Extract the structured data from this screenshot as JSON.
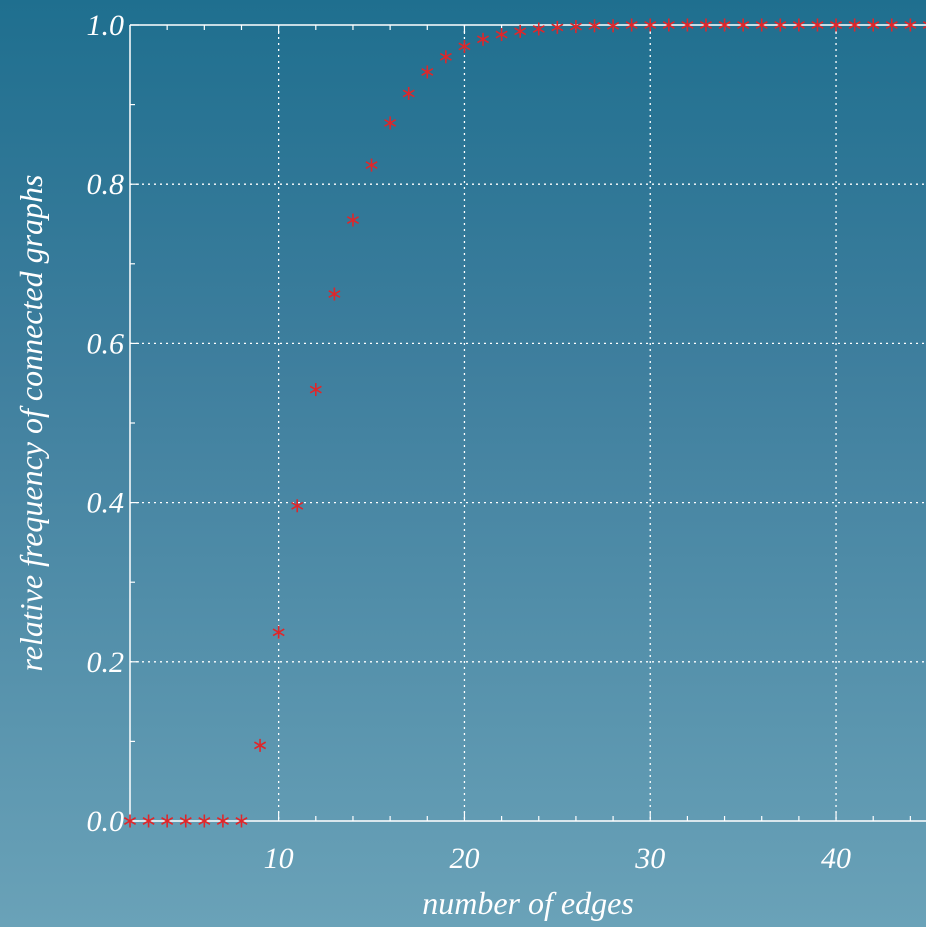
{
  "chart_data": {
    "type": "scatter",
    "xlabel": "number of edges",
    "ylabel": "relative frequency of connected graphs",
    "xlim": [
      2,
      46
    ],
    "ylim": [
      0,
      1
    ],
    "x_ticks": [
      10,
      20,
      30,
      40
    ],
    "y_ticks": [
      0.0,
      0.2,
      0.4,
      0.6,
      0.8,
      1.0
    ],
    "y_tick_labels": [
      "0.0",
      "0.2",
      "0.4",
      "0.6",
      "0.8",
      "1.0"
    ],
    "grid": true,
    "marker": "asterisk",
    "color": "#e0262a",
    "x": [
      2,
      3,
      4,
      5,
      6,
      7,
      8,
      9,
      10,
      11,
      12,
      13,
      14,
      15,
      16,
      17,
      18,
      19,
      20,
      21,
      22,
      23,
      24,
      25,
      26,
      27,
      28,
      29,
      30,
      31,
      32,
      33,
      34,
      35,
      36,
      37,
      38,
      39,
      40,
      41,
      42,
      43,
      44,
      45
    ],
    "y": [
      0,
      0,
      0,
      0,
      0,
      0,
      0,
      0.095,
      0.237,
      0.396,
      0.542,
      0.662,
      0.755,
      0.824,
      0.877,
      0.914,
      0.941,
      0.96,
      0.973,
      0.982,
      0.988,
      0.992,
      0.995,
      0.997,
      0.998,
      0.999,
      0.999,
      1,
      1,
      1,
      1,
      1,
      1,
      1,
      1,
      1,
      1,
      1,
      1,
      1,
      1,
      1,
      1,
      1
    ]
  }
}
